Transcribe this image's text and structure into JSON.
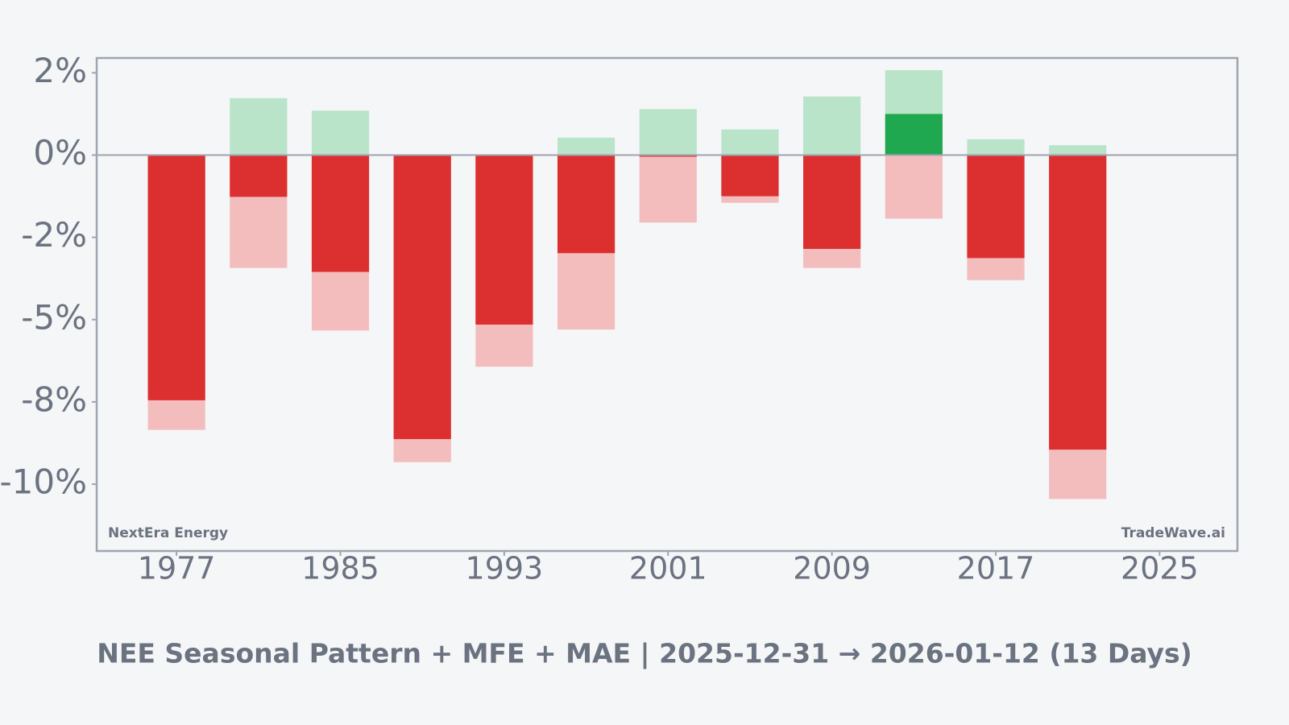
{
  "chart_data": {
    "type": "bar",
    "title": "NEE Seasonal Pattern + MFE + MAE | 2025-12-31 → 2026-01-12 (13 Days)",
    "left_label": "NextEra Energy",
    "right_label": "TradeWave.ai",
    "x": [
      1977,
      1981,
      1985,
      1989,
      1993,
      1997,
      2001,
      2005,
      2009,
      2013,
      2017,
      2021
    ],
    "values": [
      -7.45,
      -1.27,
      -3.55,
      -8.63,
      -5.15,
      -2.98,
      -0.05,
      -1.25,
      -2.85,
      1.25,
      -3.13,
      -8.95
    ],
    "mfe": [
      0,
      1.73,
      1.35,
      0,
      0,
      0.53,
      1.4,
      0.78,
      1.78,
      2.58,
      0.48,
      0.3
    ],
    "mae": [
      -8.35,
      -3.43,
      -5.33,
      -9.33,
      -6.43,
      -5.3,
      -2.05,
      -1.45,
      -3.43,
      -1.93,
      -3.8,
      -10.45
    ],
    "colors": {
      "positive": "#1fa84f",
      "negative": "#dc2f2f",
      "mfe": "#b9e4c9",
      "mae": "#f4bdbd"
    },
    "xlim": [
      1973.1,
      2028.8
    ],
    "xticks": [
      1977,
      1985,
      1993,
      2001,
      2009,
      2017,
      2025
    ],
    "ylim": [
      -12.03,
      2.95
    ],
    "yticks": [
      {
        "value": 2.5,
        "label": "2%"
      },
      {
        "value": 0,
        "label": "0%"
      },
      {
        "value": -2.5,
        "label": "-2%"
      },
      {
        "value": -5,
        "label": "-5%"
      },
      {
        "value": -7.5,
        "label": "-8%"
      },
      {
        "value": -10,
        "label": "-10%"
      }
    ]
  }
}
